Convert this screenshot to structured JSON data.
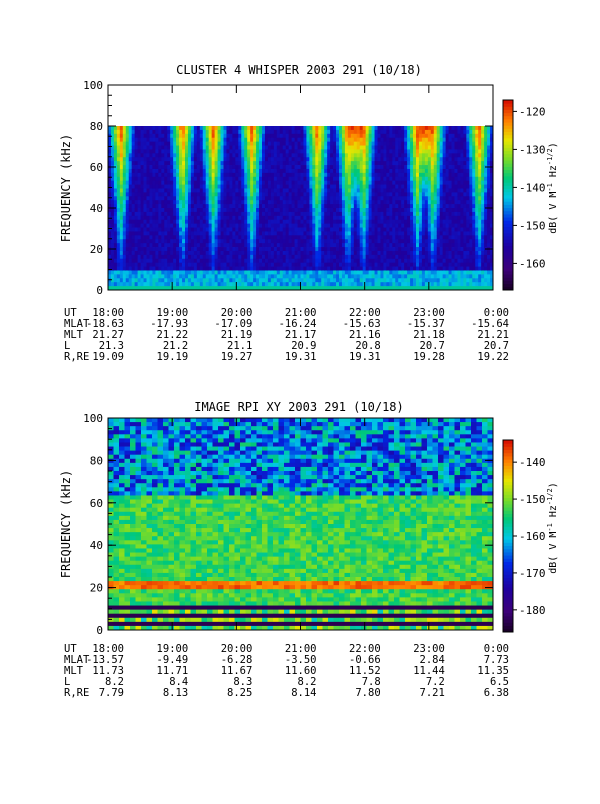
{
  "chart_data": [
    {
      "type": "heatmap",
      "title": "CLUSTER 4 WHISPER 2003 291 (10/18)",
      "ylabel": "FREQUENCY (kHz)",
      "ylim": [
        0,
        100
      ],
      "yticks": [
        "0",
        "20",
        "40",
        "60",
        "80",
        "100"
      ],
      "data_max_freq_khz": 80,
      "colorbar": {
        "label_prefix": "dB( V M",
        "label_sup1": "-1",
        "label_mid": " Hz",
        "label_sup2": "-1/2",
        "label_suffix": ")",
        "range": [
          -167,
          -117
        ],
        "ticks": [
          "-120",
          "-130",
          "-140",
          "-150",
          "-160"
        ],
        "tick_values": [
          -120,
          -130,
          -140,
          -150,
          -160
        ]
      },
      "ephemeris": {
        "rows": [
          {
            "name": "UT",
            "values": [
              "18:00",
              "19:00",
              "20:00",
              "21:00",
              "22:00",
              "23:00",
              "0:00"
            ]
          },
          {
            "name": "MLAT",
            "values": [
              "-18.63",
              "-17.93",
              "-17.09",
              "-16.24",
              "-15.63",
              "-15.37",
              "-15.64"
            ]
          },
          {
            "name": "MLT",
            "values": [
              "21.27",
              "21.22",
              "21.19",
              "21.17",
              "21.16",
              "21.18",
              "21.21"
            ]
          },
          {
            "name": "L",
            "values": [
              "21.3",
              "21.2",
              "21.1",
              "20.9",
              "20.8",
              "20.7",
              "20.7"
            ]
          },
          {
            "name": "R,RE",
            "values": [
              "19.09",
              "19.19",
              "19.27",
              "19.31",
              "19.31",
              "19.28",
              "19.22"
            ]
          }
        ]
      }
    },
    {
      "type": "heatmap",
      "title": "IMAGE RPI XY 2003 291 (10/18)",
      "ylabel": "FREQUENCY (kHz)",
      "ylim": [
        0,
        100
      ],
      "yticks": [
        "0",
        "20",
        "40",
        "60",
        "80",
        "100"
      ],
      "data_max_freq_khz": 100,
      "colorbar": {
        "label_prefix": "dB( V M",
        "label_sup1": "-1",
        "label_mid": " Hz",
        "label_sup2": "-1/2",
        "label_suffix": ")",
        "range": [
          -186,
          -134
        ],
        "ticks": [
          "-140",
          "-150",
          "-160",
          "-170",
          "-180"
        ],
        "tick_values": [
          -140,
          -150,
          -160,
          -170,
          -180
        ]
      },
      "ephemeris": {
        "rows": [
          {
            "name": "UT",
            "values": [
              "18:00",
              "19:00",
              "20:00",
              "21:00",
              "22:00",
              "23:00",
              "0:00"
            ]
          },
          {
            "name": "MLAT",
            "values": [
              "-13.57",
              "-9.49",
              "-6.28",
              "-3.50",
              "-0.66",
              "2.84",
              "7.73"
            ]
          },
          {
            "name": "MLT",
            "values": [
              "11.73",
              "11.71",
              "11.67",
              "11.60",
              "11.52",
              "11.44",
              "11.35"
            ]
          },
          {
            "name": "L",
            "values": [
              "8.2",
              "8.4",
              "8.3",
              "8.2",
              "7.8",
              "7.2",
              "6.5"
            ]
          },
          {
            "name": "R,RE",
            "values": [
              "7.79",
              "8.13",
              "8.25",
              "8.14",
              "7.80",
              "7.21",
              "6.38"
            ]
          }
        ]
      }
    }
  ]
}
